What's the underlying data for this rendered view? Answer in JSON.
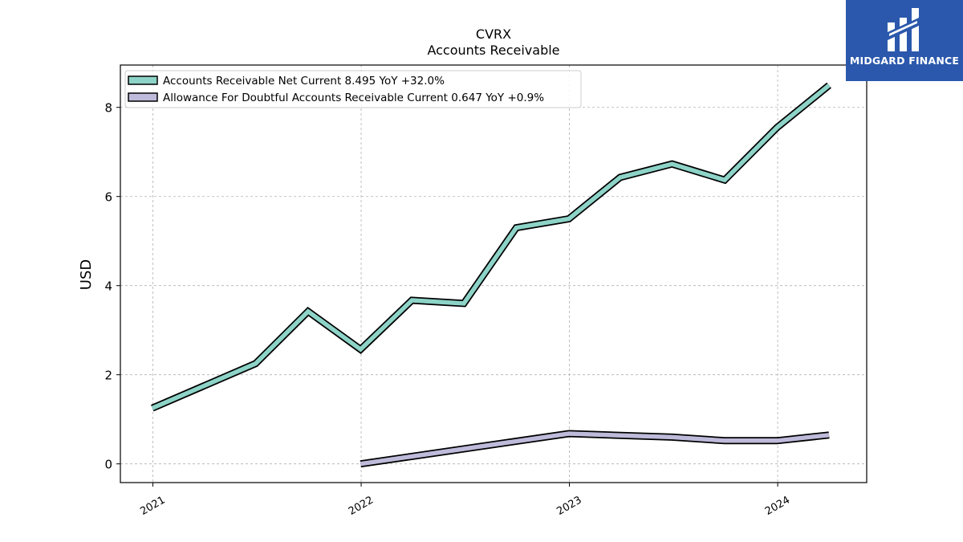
{
  "brand": {
    "name": "MIDGARD FINANCE",
    "bg_color": "#2b58ac",
    "icon": "midgard-finance-logo-mark"
  },
  "chart_data": {
    "type": "line",
    "title": "CVRX",
    "subtitle": "Accounts Receivable",
    "xlabel": "",
    "ylabel": "USD",
    "xlim": [
      "2020-11-05",
      "2024-06-05"
    ],
    "ylim": [
      -0.42,
      8.95
    ],
    "x_ticks": [
      "2021",
      "2022",
      "2023",
      "2024"
    ],
    "x_tick_dates": [
      "2021-01-01",
      "2022-01-01",
      "2023-01-01",
      "2024-01-01"
    ],
    "y_ticks": [
      0,
      2,
      4,
      6,
      8
    ],
    "grid": true,
    "legend_position": "top-left",
    "series": [
      {
        "name": "Accounts Receivable Net Current",
        "legend_label": "Accounts Receivable Net Current  8.495 YoY +32.0%",
        "color": "#8dd3c7",
        "x": [
          "2020-12-31",
          "2021-06-30",
          "2021-09-30",
          "2021-12-31",
          "2022-03-31",
          "2022-06-30",
          "2022-09-30",
          "2022-12-31",
          "2023-03-31",
          "2023-06-30",
          "2023-09-30",
          "2023-12-31",
          "2024-03-31"
        ],
        "y": [
          1.25,
          2.25,
          3.42,
          2.57,
          3.67,
          3.6,
          5.3,
          5.5,
          6.43,
          6.73,
          6.37,
          7.55,
          8.495
        ]
      },
      {
        "name": "Allowance For Doubtful Accounts Receivable Current",
        "legend_label": "Allowance For Doubtful Accounts Receivable Current  0.647 YoY +0.9%",
        "color": "#bebada",
        "x": [
          "2021-12-31",
          "2022-12-31",
          "2023-06-30",
          "2023-09-30",
          "2023-12-31",
          "2024-03-31"
        ],
        "y": [
          0.0,
          0.68,
          0.6,
          0.52,
          0.52,
          0.647
        ]
      }
    ]
  }
}
